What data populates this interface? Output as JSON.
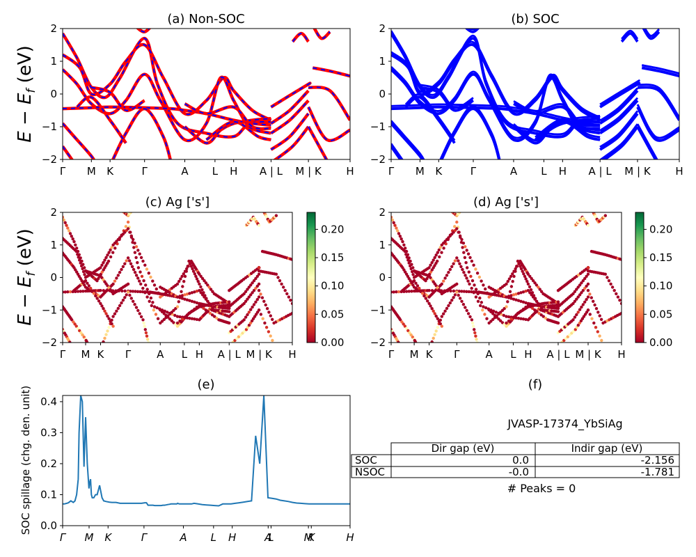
{
  "figure": {
    "ylabel_e": "E − E",
    "ylabel_sub": "f",
    "ylabel_unit": " (eV)"
  },
  "kpath_labels": [
    "Γ",
    "M",
    "K",
    "Γ",
    "A",
    "L",
    "H",
    "A | L",
    "M | K",
    "H"
  ],
  "kpath_labels_c": [
    "Γ",
    "M",
    "K",
    "Γ",
    "A",
    "L",
    "H",
    "A | L",
    "M | K",
    "H"
  ],
  "colorbar": {
    "ticks": [
      "0.00",
      "0.05",
      "0.10",
      "0.15",
      "0.20"
    ],
    "colors": [
      "#a50026",
      "#d73027",
      "#f46d43",
      "#fdae61",
      "#fee08b",
      "#ffffbf",
      "#d9ef8b",
      "#a6d96a",
      "#66bd63",
      "#1a9850",
      "#006837"
    ]
  },
  "colors": {
    "nonsoc_red": "#ff0000",
    "nonsoc_blue": "#0000ff",
    "soc_blue": "#0000ff",
    "spillage": "#1f77b4",
    "proj_dark": "#a50026"
  },
  "chart_data": [
    {
      "id": "a",
      "type": "line",
      "title": "(a) Non-SOC",
      "ylabel": "E − E_f (eV)",
      "ylim": [
        -2,
        2
      ],
      "yticks": [
        "−2",
        "−1",
        "0",
        "1",
        "2"
      ],
      "x_ticks": [
        "Γ",
        "M",
        "K",
        "Γ",
        "A",
        "L",
        "H",
        "A | L",
        "M | K",
        "H"
      ],
      "note": "spin-up red, spin-down blue dashed; many bands crossing Fermi level"
    },
    {
      "id": "b",
      "type": "line",
      "title": "(b) SOC",
      "ylim": [
        -2,
        2
      ],
      "yticks": [
        "−2",
        "−1",
        "0",
        "1",
        "2"
      ],
      "x_ticks": [
        "Γ",
        "M",
        "K",
        "Γ",
        "A",
        "L",
        "H",
        "A | L",
        "M | K",
        "H"
      ]
    },
    {
      "id": "c",
      "type": "scatter",
      "title": "(c)  Ag ['s']",
      "ylabel": "E − E_f (eV)",
      "ylim": [
        -2,
        2
      ],
      "yticks": [
        "−2",
        "−1",
        "0",
        "1",
        "2"
      ],
      "x_ticks": [
        "Γ",
        "M",
        "K",
        "Γ",
        "A",
        "L",
        "H",
        "A | L",
        "M | K",
        "H"
      ],
      "colorbar_range": [
        0,
        0.23
      ]
    },
    {
      "id": "d",
      "type": "scatter",
      "title": "(d) Ag ['s']",
      "ylim": [
        -2,
        2
      ],
      "yticks": [
        "−2",
        "−1",
        "0",
        "1",
        "2"
      ],
      "x_ticks": [
        "Γ",
        "M",
        "K",
        "Γ",
        "A",
        "L",
        "H",
        "A | L",
        "M | K",
        "H"
      ],
      "colorbar_range": [
        0,
        0.23
      ]
    },
    {
      "id": "e",
      "type": "line",
      "title": "(e)",
      "ylabel": "SOC spillage (chg. den. unit)",
      "ylim": [
        0,
        0.42
      ],
      "yticks": [
        "0.0",
        "0.1",
        "0.2",
        "0.3",
        "0.4"
      ],
      "x_ticks": [
        "Γ",
        "M",
        "K",
        "Γ",
        "A",
        "L",
        "H",
        "A",
        "L",
        "M",
        "K",
        "H"
      ],
      "x": [
        0,
        0.02,
        0.05,
        0.07,
        0.1,
        0.13,
        0.15,
        0.17,
        0.19,
        0.2,
        0.22,
        0.24,
        0.26,
        0.28,
        0.3,
        0.32,
        0.33,
        0.34,
        0.35,
        0.36,
        0.37,
        0.38,
        0.39,
        0.4,
        0.42,
        0.45,
        0.48,
        0.5,
        0.53,
        0.57,
        0.6,
        0.65,
        0.7,
        0.72,
        0.78,
        0.84,
        0.9,
        0.96,
        1.0,
        1.02,
        1.04,
        1.06,
        1.08,
        1.1,
        1.12,
        1.14,
        1.16,
        1.18,
        1.2,
        1.22,
        1.24,
        1.26,
        1.28,
        1.3,
        1.32,
        1.33,
        1.35,
        1.36,
        1.37,
        1.38,
        1.39,
        1.4,
        1.42,
        1.45,
        1.48,
        1.5,
        1.53,
        1.57,
        1.6,
        1.65,
        1.7,
        1.75,
        1.8,
        1.85,
        1.9,
        1.95,
        2.0,
        2.05,
        2.1,
        2.15,
        2.2,
        2.25,
        2.3,
        2.35,
        2.4,
        2.45,
        2.5,
        2.55,
        2.6,
        2.65,
        2.7,
        2.75,
        2.8,
        2.85,
        2.9,
        2.95,
        3.0,
        3.05,
        3.1,
        3.15,
        3.2,
        3.25,
        3.3,
        3.35,
        3.4,
        3.45,
        3.5
      ],
      "values": [
        0.07,
        0.07,
        0.072,
        0.074,
        0.08,
        0.075,
        0.08,
        0.1,
        0.15,
        0.3,
        0.42,
        0.4,
        0.19,
        0.35,
        0.2,
        0.12,
        0.14,
        0.15,
        0.1,
        0.09,
        0.09,
        0.09,
        0.095,
        0.1,
        0.1,
        0.13,
        0.09,
        0.08,
        0.078,
        0.076,
        0.075,
        0.075,
        0.072,
        0.072,
        0.072,
        0.072,
        0.072,
        0.072,
        0.074,
        0.074,
        0.066,
        0.066,
        0.066,
        0.066,
        0.065,
        0.065,
        0.065,
        0.065,
        0.065,
        0.066,
        0.066,
        0.067,
        0.068,
        0.069,
        0.07,
        0.07,
        0.07,
        0.07,
        0.07,
        0.07,
        0.07,
        0.072,
        0.07,
        0.07,
        0.07,
        0.07,
        0.07,
        0.07,
        0.072,
        0.07,
        0.068,
        0.067,
        0.066,
        0.065,
        0.064,
        0.07,
        0.07,
        0.07,
        0.072,
        0.074,
        0.076,
        0.078,
        0.08,
        0.29,
        0.2,
        0.42,
        0.09,
        0.088,
        0.086,
        0.082,
        0.08,
        0.078,
        0.075,
        0.073,
        0.072,
        0.071,
        0.07,
        0.07,
        0.07,
        0.07,
        0.07,
        0.07,
        0.07,
        0.07,
        0.07,
        0.07,
        0.07
      ]
    }
  ],
  "panel_f": {
    "title": "(f)",
    "material": "JVASP-17374_YbSiAg",
    "table": {
      "headers": [
        "",
        "Dir gap (eV)",
        "Indir gap (eV)"
      ],
      "rows": [
        [
          "SOC",
          "0.0",
          "-2.156"
        ],
        [
          "NSOC",
          "-0.0",
          "-1.781"
        ]
      ]
    },
    "peaks": "# Peaks = 0"
  }
}
